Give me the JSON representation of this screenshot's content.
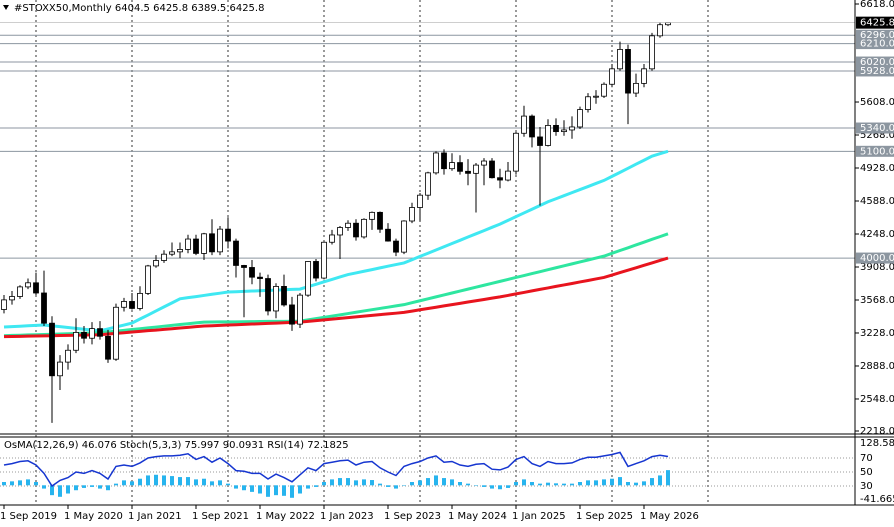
{
  "chart_data": [
    {
      "type": "candlestick",
      "title": "#STOXX50,Monthly",
      "categories": [
        "1 Sep 2019",
        null,
        null,
        null,
        null,
        null,
        null,
        null,
        "1 May 2020",
        null,
        null,
        null,
        null,
        null,
        null,
        null,
        "1 Jan 2021",
        null,
        null,
        null,
        null,
        null,
        null,
        null,
        "1 Sep 2021",
        null,
        null,
        null,
        null,
        null,
        null,
        null,
        "1 May 2022",
        null,
        null,
        null,
        null,
        null,
        null,
        null,
        "1 Jan 2023",
        null,
        null,
        null,
        null,
        null,
        null,
        null,
        "1 Sep 2023",
        null,
        null,
        null,
        null,
        null,
        null,
        null,
        "1 May 2024",
        null,
        null,
        null,
        null,
        null,
        null,
        null,
        "1 Jan 2025",
        null,
        null,
        null,
        null,
        null,
        null,
        null,
        "1 Sep 2025",
        null,
        null,
        null,
        null,
        null,
        null,
        null,
        "1 May 2026",
        null,
        null,
        null
      ],
      "open": [
        3470,
        3569,
        3604,
        3703,
        3745,
        3640,
        3329,
        2787,
        2928,
        3050,
        3234,
        3174,
        3273,
        3194,
        2958,
        3493,
        3553,
        3481,
        3636,
        3919,
        3975,
        4040,
        4064,
        4089,
        4196,
        4048,
        4250,
        4064,
        4298,
        4175,
        3924,
        3903,
        3803,
        3789,
        3455,
        3708,
        3517,
        3319,
        3618,
        3965,
        3794,
        4163,
        4238,
        4315,
        4359,
        4218,
        4399,
        4471,
        4297,
        4175,
        4061,
        4382,
        4521,
        4648,
        4878,
        5083,
        4921,
        4984,
        4894,
        4873,
        4958,
        5000,
        4828,
        4804,
        4896,
        5286,
        5463,
        5248,
        5160,
        5367,
        5303,
        5320,
        5351,
        5530,
        5662,
        5668,
        5791,
        5950,
        6150,
        5700,
        5800,
        5950,
        6290,
        6404.5
      ],
      "high": [
        3620,
        3660,
        3720,
        3790,
        3850,
        3870,
        3400,
        3000,
        3110,
        3380,
        3300,
        3340,
        3350,
        3260,
        3530,
        3590,
        3640,
        3710,
        3930,
        4030,
        4080,
        4160,
        4160,
        4240,
        4240,
        4260,
        4400,
        4330,
        4420,
        4200,
        3930,
        3980,
        3850,
        3830,
        3740,
        3830,
        3600,
        3640,
        3970,
        3990,
        4170,
        4290,
        4330,
        4390,
        4400,
        4410,
        4480,
        4480,
        4360,
        4200,
        4390,
        4570,
        4670,
        4890,
        5100,
        5120,
        5080,
        5060,
        5020,
        4980,
        5030,
        5030,
        4920,
        4990,
        5300,
        5570,
        5480,
        5350,
        5430,
        5440,
        5420,
        5460,
        5560,
        5700,
        5730,
        5810,
        6000,
        6230,
        6200,
        5900,
        6000,
        6320,
        6430,
        6425.8
      ],
      "low": [
        3430,
        3520,
        3580,
        3680,
        3620,
        3300,
        2302,
        2640,
        2850,
        3020,
        3120,
        3110,
        3160,
        2920,
        2940,
        3450,
        3470,
        3460,
        3620,
        3900,
        3950,
        4020,
        4000,
        4050,
        4030,
        3980,
        4030,
        4030,
        4100,
        3800,
        3390,
        3730,
        3600,
        3410,
        3380,
        3500,
        3250,
        3280,
        3600,
        3760,
        3780,
        4140,
        3990,
        4280,
        4180,
        4200,
        4290,
        4260,
        4170,
        4020,
        4040,
        4360,
        4380,
        4600,
        4860,
        4860,
        4900,
        4860,
        4750,
        4470,
        4750,
        4820,
        4720,
        4790,
        4860,
        5250,
        5140,
        4540,
        5150,
        5260,
        5260,
        5230,
        5330,
        5500,
        5590,
        5650,
        5760,
        5930,
        5380,
        5660,
        5760,
        5930,
        6270,
        6389.5
      ],
      "close": [
        3569,
        3604,
        3703,
        3745,
        3640,
        3329,
        2787,
        2928,
        3050,
        3234,
        3174,
        3273,
        3194,
        2958,
        3493,
        3553,
        3481,
        3636,
        3919,
        3975,
        4040,
        4064,
        4089,
        4196,
        4048,
        4250,
        4064,
        4298,
        4175,
        3924,
        3903,
        3803,
        3789,
        3455,
        3708,
        3517,
        3319,
        3618,
        3965,
        3794,
        4163,
        4238,
        4315,
        4359,
        4218,
        4399,
        4471,
        4297,
        4175,
        4061,
        4382,
        4521,
        4648,
        4878,
        5083,
        4921,
        4984,
        4894,
        4873,
        4958,
        5000,
        4828,
        4804,
        4896,
        5286,
        5463,
        5248,
        5160,
        5367,
        5303,
        5320,
        5351,
        5530,
        5662,
        5668,
        5791,
        5950,
        6150,
        5700,
        5800,
        5950,
        6290,
        6404.5,
        6425.8
      ],
      "up_color": "#ffffff",
      "down_color": "#000000",
      "series": [
        {
          "color": "#3fe8f2",
          "values": [
            3290,
            3294,
            3298,
            3302,
            3306,
            3310,
            3301,
            3293,
            3284,
            3276,
            3267,
            3259,
            3250,
            3270,
            3290,
            3310,
            3330,
            3372,
            3413,
            3455,
            3497,
            3538,
            3580,
            3592,
            3603,
            3615,
            3627,
            3638,
            3650,
            3653,
            3657,
            3660,
            3663,
            3667,
            3670,
            3673,
            3677,
            3680,
            3705,
            3730,
            3755,
            3780,
            3805,
            3830,
            3847,
            3864,
            3881,
            3899,
            3916,
            3933,
            3950,
            3983,
            4017,
            4050,
            4083,
            4117,
            4150,
            4183,
            4217,
            4250,
            4283,
            4317,
            4350,
            4388,
            4427,
            4465,
            4503,
            4542,
            4580,
            4611,
            4643,
            4674,
            4706,
            4737,
            4769,
            4800,
            4842,
            4883,
            4925,
            4967,
            5008,
            5050,
            5075,
            5100
          ]
        },
        {
          "color": "#2ee6a0",
          "values": [
            3200,
            3203,
            3205,
            3208,
            3210,
            3213,
            3215,
            3218,
            3220,
            3223,
            3225,
            3228,
            3230,
            3238,
            3247,
            3255,
            3264,
            3272,
            3281,
            3289,
            3298,
            3306,
            3315,
            3323,
            3332,
            3340,
            3341,
            3342,
            3343,
            3343,
            3344,
            3345,
            3346,
            3347,
            3348,
            3348,
            3349,
            3350,
            3363,
            3376,
            3389,
            3402,
            3415,
            3428,
            3442,
            3455,
            3468,
            3481,
            3494,
            3507,
            3520,
            3540,
            3560,
            3580,
            3600,
            3620,
            3640,
            3660,
            3680,
            3700,
            3720,
            3740,
            3760,
            3780,
            3800,
            3820,
            3840,
            3860,
            3880,
            3900,
            3920,
            3940,
            3960,
            3980,
            4000,
            4020,
            4049,
            4078,
            4106,
            4135,
            4164,
            4193,
            4221,
            4250
          ]
        },
        {
          "color": "#e8141e",
          "values": [
            3190,
            3192,
            3193,
            3195,
            3197,
            3198,
            3200,
            3202,
            3203,
            3205,
            3207,
            3208,
            3210,
            3217,
            3224,
            3231,
            3238,
            3245,
            3252,
            3258,
            3265,
            3272,
            3279,
            3286,
            3293,
            3300,
            3303,
            3307,
            3310,
            3313,
            3317,
            3320,
            3323,
            3327,
            3330,
            3333,
            3337,
            3340,
            3348,
            3355,
            3363,
            3371,
            3378,
            3386,
            3394,
            3402,
            3409,
            3417,
            3425,
            3432,
            3440,
            3453,
            3467,
            3480,
            3493,
            3507,
            3520,
            3533,
            3547,
            3560,
            3573,
            3587,
            3600,
            3615,
            3631,
            3646,
            3662,
            3677,
            3692,
            3708,
            3723,
            3738,
            3754,
            3769,
            3785,
            3800,
            3825,
            3850,
            3875,
            3900,
            3925,
            3950,
            3975,
            4000
          ]
        }
      ],
      "ylim": [
        2218,
        6618
      ],
      "yticks": [
        {
          "value": 2218,
          "label": "2218.0"
        },
        {
          "value": 2548,
          "label": "2548.0"
        },
        {
          "value": 2888,
          "label": "2888.0"
        },
        {
          "value": 3228,
          "label": "3228.0"
        },
        {
          "value": 3568,
          "label": "3568.0"
        },
        {
          "value": 3908,
          "label": "3908.0"
        },
        {
          "value": 4248,
          "label": "4248.0"
        },
        {
          "value": 4588,
          "label": "4588.0"
        },
        {
          "value": 4928,
          "label": "4928.0"
        },
        {
          "value": 5268,
          "label": "5268.0"
        },
        {
          "value": 5608,
          "label": "5608.0"
        },
        {
          "value": 6618,
          "label": "6618.0"
        }
      ],
      "levels": [
        {
          "value": 6296,
          "label": "6296.0"
        },
        {
          "value": 6210,
          "label": "6210.0"
        },
        {
          "value": 6020,
          "label": "6020.0"
        },
        {
          "value": 5928,
          "label": "5928.0"
        },
        {
          "value": 5340,
          "label": "5340.0"
        },
        {
          "value": 5100,
          "label": "5100.0"
        },
        {
          "value": 4000,
          "label": "4000.0"
        }
      ],
      "level_color": "#8c96a0"
    },
    {
      "type": "indicator",
      "osma_title": "OsMA(12,26,9)",
      "stoch_title": "Stoch(5,3,3) 75.997 90.0931",
      "rsi_title": "RSI(14)",
      "osma_color": "#27b4ee",
      "rsi_color": "#1636d0",
      "osma": [
        10,
        12,
        15,
        18,
        10,
        -10,
        -30,
        -35,
        -25,
        -15,
        -8,
        -5,
        -10,
        -15,
        5,
        15,
        12,
        20,
        30,
        32,
        30,
        28,
        25,
        25,
        18,
        20,
        12,
        15,
        5,
        -10,
        -15,
        -20,
        -25,
        -35,
        -30,
        -32,
        -38,
        -25,
        -10,
        -5,
        10,
        18,
        22,
        22,
        15,
        18,
        16,
        5,
        -5,
        -10,
        0,
        10,
        15,
        22,
        30,
        22,
        18,
        10,
        5,
        0,
        -5,
        -10,
        -12,
        -8,
        10,
        18,
        10,
        5,
        8,
        6,
        5,
        5,
        10,
        15,
        15,
        18,
        20,
        25,
        10,
        8,
        12,
        22,
        30,
        46.076
      ],
      "rsi": [
        60,
        62,
        65,
        66,
        60,
        48,
        30,
        38,
        42,
        50,
        48,
        52,
        48,
        40,
        58,
        60,
        58,
        63,
        70,
        72,
        73,
        73,
        74,
        76,
        68,
        72,
        64,
        70,
        62,
        52,
        51,
        48,
        48,
        40,
        47,
        42,
        36,
        46,
        56,
        52,
        62,
        64,
        66,
        67,
        60,
        64,
        65,
        56,
        50,
        45,
        58,
        62,
        65,
        70,
        73,
        64,
        65,
        60,
        58,
        61,
        62,
        54,
        53,
        57,
        68,
        72,
        62,
        58,
        65,
        62,
        62,
        63,
        68,
        71,
        71,
        73,
        75,
        78,
        58,
        62,
        66,
        72,
        74,
        72.1825
      ],
      "ylim": [
        -41.665,
        128.582
      ],
      "yticks": [
        -41.665,
        128.582
      ],
      "y2lim": [
        0,
        100
      ],
      "y2ticks": [
        30,
        50,
        70
      ]
    }
  ]
}
